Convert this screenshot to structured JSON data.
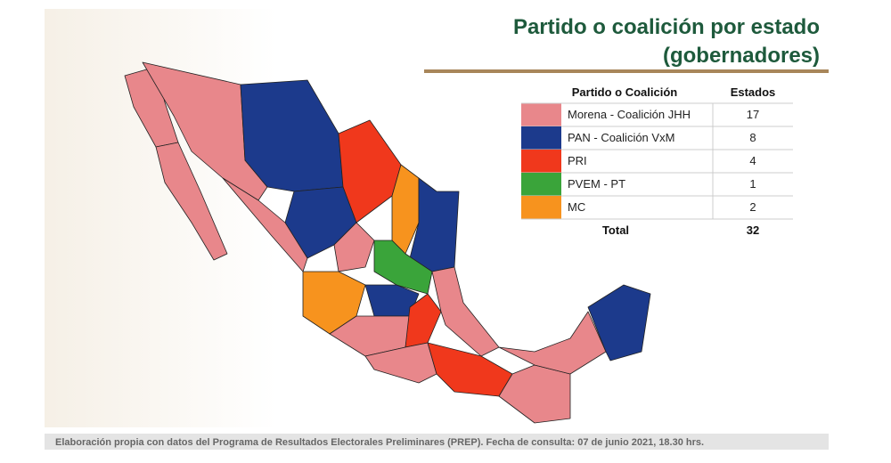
{
  "header": {
    "title": [
      "Partido o coalición por estado",
      "(gobernadores)"
    ]
  },
  "table": {
    "columns": [
      "Partido o Coalición",
      "Estados"
    ],
    "rows": [
      {
        "name": "Morena - Coalición JHH",
        "color": "#e8878b",
        "count": 17
      },
      {
        "name": "PAN - Coalición VxM",
        "color": "#1c3a8c",
        "count": 8
      },
      {
        "name": "PRI",
        "color": "#f0381c",
        "count": 4
      },
      {
        "name": "PVEM - PT",
        "color": "#3aa43a",
        "count": 1
      },
      {
        "name": "MC",
        "color": "#f7931e",
        "count": 2
      }
    ],
    "total": {
      "label": "Total",
      "count": 32
    }
  },
  "footer": "Elaboración propia con datos del Programa de Resultados Electorales Preliminares (PREP). Fecha de consulta: 07 de junio 2021, 18.30 hrs."
}
